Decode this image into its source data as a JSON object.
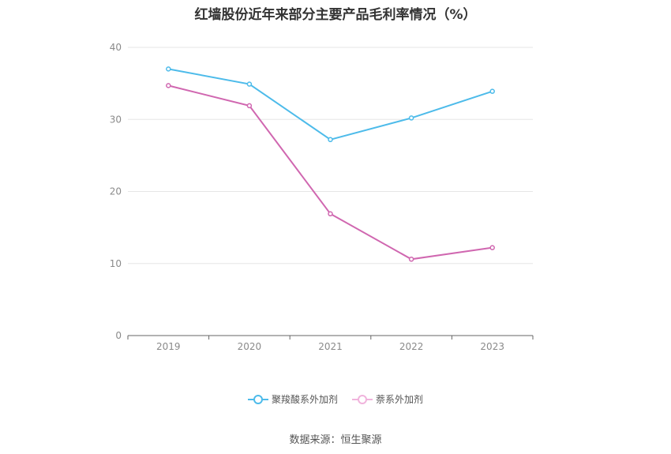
{
  "chart_data": {
    "type": "line",
    "title": "红墙股份近年来部分主要产品毛利率情况（%）",
    "x": [
      "2019",
      "2020",
      "2021",
      "2022",
      "2023"
    ],
    "series": [
      {
        "name": "聚羧酸系外加剂",
        "color": "#4dbbea",
        "values": [
          37.0,
          34.9,
          27.2,
          30.2,
          33.9
        ]
      },
      {
        "name": "萘系外加剂",
        "color": "#d067b0",
        "values": [
          34.7,
          31.9,
          16.9,
          10.6,
          12.2
        ]
      }
    ],
    "ylim": [
      0,
      40
    ],
    "yticks": [
      0,
      10,
      20,
      30,
      40
    ],
    "grid": true,
    "legend_position": "bottom"
  },
  "source_text": "数据来源：恒生聚源"
}
